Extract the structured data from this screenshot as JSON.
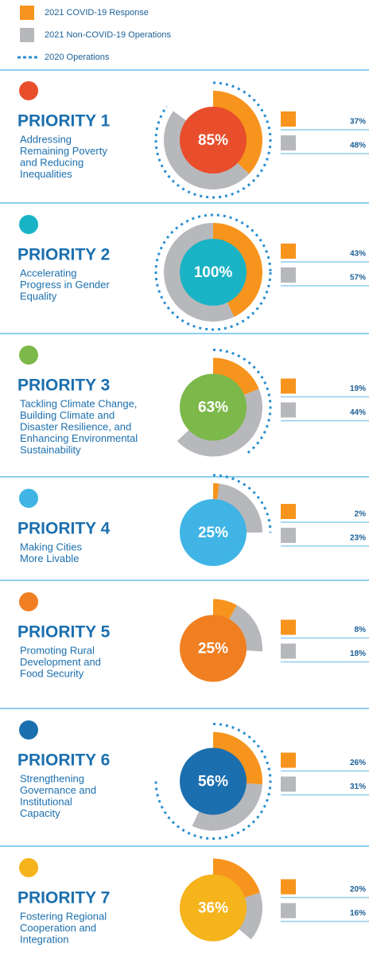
{
  "legend": [
    {
      "name": "2021 COVID-19 Response",
      "color": "#f7941d"
    },
    {
      "name": "2021 Non-COVID-19 Operations",
      "color": "#b7b8bb"
    },
    {
      "name": "2020 Operations",
      "color": "#2a8fd0"
    }
  ],
  "chart_data": [
    {
      "type": "donut",
      "title": "PRIORITY 1",
      "description": [
        "Addressing",
        "Remaining Poverty",
        "and Reducing",
        "Inequalities"
      ],
      "center_color": "#e84e2c",
      "total": 85,
      "total_label": "85%",
      "values": [
        37,
        48
      ],
      "value_labels": [
        "37%",
        "48%"
      ],
      "ops_2020": 85
    },
    {
      "type": "donut",
      "title": "PRIORITY 2",
      "description": [
        "Accelerating",
        "Progress in Gender",
        "Equality"
      ],
      "center_color": "#1ab3c6",
      "total": 100,
      "total_label": "100%",
      "values": [
        43,
        57
      ],
      "value_labels": [
        "43%",
        "57%"
      ],
      "ops_2020": 100
    },
    {
      "type": "donut",
      "title": "PRIORITY 3",
      "description": [
        "Tackling Climate Change,",
        "Building Climate and",
        "Disaster Resilience, and",
        "Enhancing Environmental",
        "Sustainability"
      ],
      "center_color": "#7cb84a",
      "total": 63,
      "total_label": "63%",
      "values": [
        19,
        44
      ],
      "value_labels": [
        "19%",
        "44%"
      ],
      "ops_2020": 40
    },
    {
      "type": "donut",
      "title": "PRIORITY 4",
      "description": [
        "Making Cities",
        "More Livable"
      ],
      "center_color": "#3fb4e5",
      "total": 25,
      "total_label": "25%",
      "values": [
        2,
        23
      ],
      "value_labels": [
        "2%",
        "23%"
      ],
      "ops_2020": 25
    },
    {
      "type": "donut",
      "title": "PRIORITY 5",
      "description": [
        "Promoting Rural",
        "Development and",
        "Food Security"
      ],
      "center_color": "#f07f22",
      "total": 25,
      "total_label": "25%",
      "values": [
        8,
        18
      ],
      "value_labels": [
        "8%",
        "18%"
      ]
    },
    {
      "type": "donut",
      "title": "PRIORITY 6",
      "description": [
        "Strengthening",
        "Governance and",
        "Institutional",
        "Capacity"
      ],
      "center_color": "#1b6fae",
      "total": 56,
      "total_label": "56%",
      "values": [
        26,
        31
      ],
      "value_labels": [
        "26%",
        "31%"
      ],
      "ops_2020": 75
    },
    {
      "type": "donut",
      "title": "PRIORITY 7",
      "description": [
        "Fostering Regional",
        "Cooperation and",
        "Integration"
      ],
      "center_color": "#f5b31c",
      "total": 36,
      "total_label": "36%",
      "values": [
        20,
        16
      ],
      "value_labels": [
        "20%",
        "16%"
      ]
    }
  ]
}
